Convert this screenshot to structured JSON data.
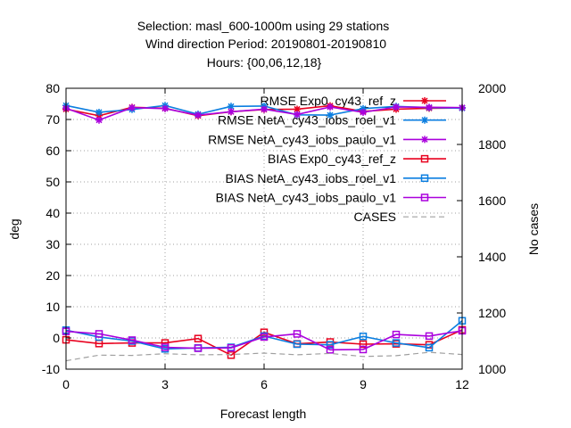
{
  "chart_data": {
    "type": "line",
    "title_lines": [
      "Selection: masl_600-1000m using    29 stations",
      "Wind direction   Period: 20190801-20190810",
      "Hours: {00,06,12,18}"
    ],
    "xlabel": "Forecast length",
    "ylabel": "deg",
    "y2label": "No cases",
    "xlim": [
      0,
      12
    ],
    "ylim": [
      -10,
      80
    ],
    "y2lim": [
      1000,
      2000
    ],
    "xticks": [
      "0",
      "3",
      "6",
      "9",
      "12"
    ],
    "yticks": [
      "-10",
      "0",
      "10",
      "20",
      "30",
      "40",
      "50",
      "60",
      "70",
      "80"
    ],
    "y2ticks": [
      "1000",
      "1200",
      "1400",
      "1600",
      "1800",
      "2000"
    ],
    "grid": true,
    "legend_position": "top-right",
    "x": [
      0,
      1,
      2,
      3,
      4,
      5,
      6,
      7,
      8,
      9,
      10,
      11,
      12
    ],
    "series": [
      {
        "name": "RMSE Exp0_cy43_ref_z",
        "color": "#e8001e",
        "marker": "star",
        "axis": "y1",
        "values": [
          73.3,
          71.2,
          73.9,
          73.6,
          71.2,
          72.5,
          73.2,
          73.3,
          74.4,
          72.6,
          73.3,
          73.6,
          73.7
        ]
      },
      {
        "name": "RMSE NetA_cy43_iobs_roel_v1",
        "color": "#0b7ee0",
        "marker": "star",
        "axis": "y1",
        "values": [
          74.5,
          72.3,
          73.2,
          74.5,
          71.7,
          74.2,
          74.3,
          71.5,
          71.4,
          73.5,
          74.2,
          73.8,
          73.6
        ]
      },
      {
        "name": "RMSE NetA_cy43_iobs_paulo_v1",
        "color": "#aa00dd",
        "marker": "star",
        "axis": "y1",
        "values": [
          73.6,
          69.8,
          73.8,
          73.5,
          71.4,
          72.5,
          73.3,
          71.6,
          74.0,
          72.3,
          74.0,
          73.9,
          73.8
        ]
      },
      {
        "name": "BIAS Exp0_cy43_ref_z",
        "color": "#e8001e",
        "marker": "square",
        "axis": "y1",
        "values": [
          -0.6,
          -1.8,
          -1.6,
          -1.6,
          -0.2,
          -5.5,
          1.8,
          -1.9,
          -1.3,
          -2.0,
          -1.9,
          -2.2,
          2.6
        ]
      },
      {
        "name": "BIAS NetA_cy43_iobs_roel_v1",
        "color": "#0b7ee0",
        "marker": "square",
        "axis": "y1",
        "values": [
          2.5,
          0.3,
          -1.0,
          -3.5,
          -3.2,
          -3.0,
          0.6,
          -2.0,
          -2.2,
          0.5,
          -1.6,
          -3.1,
          5.5
        ]
      },
      {
        "name": "BIAS NetA_cy43_iobs_paulo_v1",
        "color": "#aa00dd",
        "marker": "square",
        "axis": "y1",
        "values": [
          2.1,
          1.3,
          -0.7,
          -3.0,
          -3.3,
          -3.2,
          0.3,
          1.3,
          -3.8,
          -3.7,
          1.1,
          0.6,
          2.3
        ]
      },
      {
        "name": "CASES",
        "color": "#a0a0a0",
        "marker": "none",
        "dash": true,
        "axis": "y2",
        "values": [
          1030,
          1050,
          1049,
          1055,
          1051,
          1052,
          1057,
          1051,
          1056,
          1045,
          1048,
          1060,
          1052
        ]
      }
    ]
  }
}
